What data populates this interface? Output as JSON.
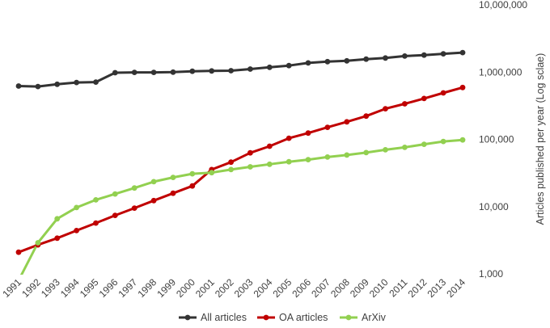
{
  "chart_data": {
    "type": "line",
    "title": "",
    "xlabel": "",
    "ylabel": "Articles published per year (Log sclae)",
    "yscale": "log",
    "ylim": [
      1000,
      10000000
    ],
    "y_ticks": [
      1000,
      10000,
      100000,
      1000000,
      10000000
    ],
    "y_tick_labels": [
      "1,000",
      "10,000",
      "100,000",
      "1,000,000",
      "10,000,000"
    ],
    "grid": false,
    "legend_position": "bottom",
    "x": [
      "1991",
      "1992",
      "1993",
      "1994",
      "1995",
      "1996",
      "1997",
      "1998",
      "1999",
      "2000",
      "2001",
      "2002",
      "2003",
      "2004",
      "2005",
      "2006",
      "2007",
      "2008",
      "2009",
      "2010",
      "2011",
      "2012",
      "2013",
      "2014"
    ],
    "series": [
      {
        "name": "All articles",
        "color": "#333333",
        "values": [
          620000,
          610000,
          660000,
          700000,
          710000,
          980000,
          990000,
          990000,
          1000000,
          1030000,
          1040000,
          1050000,
          1110000,
          1180000,
          1250000,
          1370000,
          1430000,
          1470000,
          1560000,
          1620000,
          1730000,
          1790000,
          1870000,
          1950000
        ]
      },
      {
        "name": "OA articles",
        "color": "#c00000",
        "values": [
          2100,
          2700,
          3400,
          4400,
          5700,
          7400,
          9500,
          12300,
          15800,
          20300,
          35500,
          45800,
          63000,
          79000,
          104000,
          124000,
          151000,
          182000,
          222000,
          285000,
          338000,
          405000,
          490000,
          590000
        ]
      },
      {
        "name": "ArXiv",
        "color": "#92d050",
        "values": [
          800,
          2900,
          6600,
          9700,
          12600,
          15400,
          18900,
          23500,
          27200,
          30800,
          32000,
          35500,
          39000,
          42700,
          46500,
          50000,
          54500,
          58500,
          63500,
          70000,
          76000,
          84500,
          93000,
          98000
        ]
      }
    ]
  }
}
